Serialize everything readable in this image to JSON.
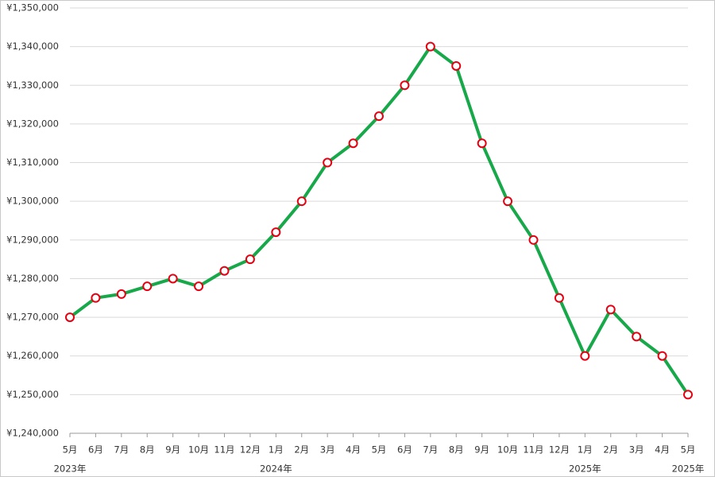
{
  "chart_data": {
    "type": "line",
    "categories": [
      "5月",
      "6月",
      "7月",
      "8月",
      "9月",
      "10月",
      "11月",
      "12月",
      "1月",
      "2月",
      "3月",
      "4月",
      "5月",
      "6月",
      "7月",
      "8月",
      "9月",
      "10月",
      "11月",
      "12月",
      "1月",
      "2月",
      "3月",
      "4月",
      "5月"
    ],
    "years": [
      "2023年",
      null,
      null,
      null,
      null,
      null,
      null,
      null,
      "2024年",
      null,
      null,
      null,
      null,
      null,
      null,
      null,
      null,
      null,
      null,
      null,
      "2025年",
      null,
      null,
      null,
      "2025年"
    ],
    "values": [
      1270000,
      1275000,
      1276000,
      1278000,
      1280000,
      1278000,
      1282000,
      1285000,
      1292000,
      1300000,
      1310000,
      1315000,
      1322000,
      1330000,
      1340000,
      1335000,
      1315000,
      1300000,
      1290000,
      1275000,
      1260000,
      1272000,
      1265000,
      1260000,
      1250000
    ],
    "color": "#17a84a",
    "marker_stroke": "#e60012",
    "ylim": [
      1240000,
      1350000
    ],
    "yticks": [
      {
        "value": 1240000,
        "label": "¥1,240,000"
      },
      {
        "value": 1250000,
        "label": "¥1,250,000"
      },
      {
        "value": 1260000,
        "label": "¥1,260,000"
      },
      {
        "value": 1270000,
        "label": "¥1,270,000"
      },
      {
        "value": 1280000,
        "label": "¥1,280,000"
      },
      {
        "value": 1290000,
        "label": "¥1,290,000"
      },
      {
        "value": 1300000,
        "label": "¥1,300,000"
      },
      {
        "value": 1310000,
        "label": "¥1,310,000"
      },
      {
        "value": 1320000,
        "label": "¥1,320,000"
      },
      {
        "value": 1330000,
        "label": "¥1,330,000"
      },
      {
        "value": 1340000,
        "label": "¥1,340,000"
      },
      {
        "value": 1350000,
        "label": "¥1,350,000"
      }
    ],
    "grid": true
  }
}
